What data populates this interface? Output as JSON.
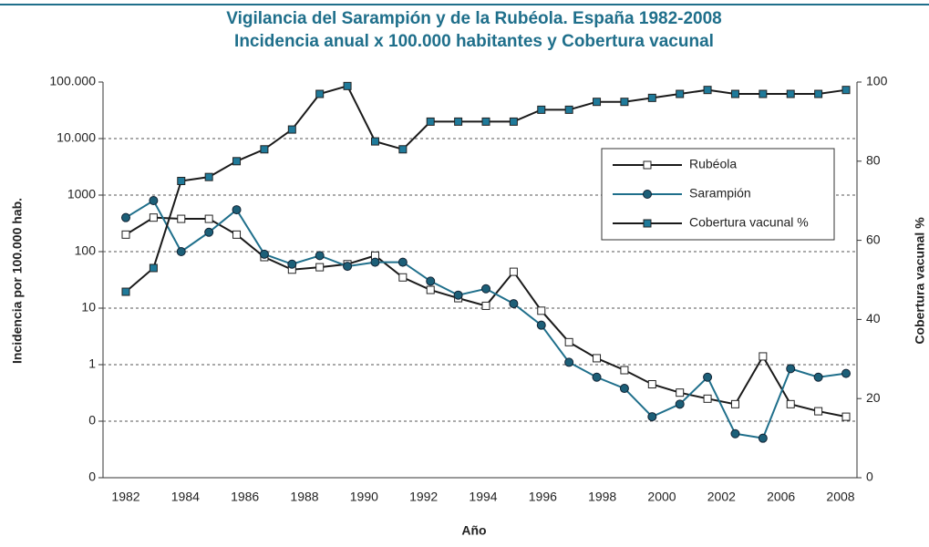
{
  "chart_data": {
    "type": "line",
    "title": [
      "Vigilancia del Sarampión y de la Rubéola. España 1982-2008",
      "Incidencia anual x 100.000 habitantes y Cobertura vacunal"
    ],
    "xlabel": "Año",
    "ylabel": "Incidencia por 100.000 hab.",
    "y2label": "Cobertura vacunal %",
    "xtick_labels": [
      "1982",
      "1984",
      "1986",
      "1988",
      "1990",
      "1992",
      "1994",
      "1996",
      "1998",
      "2000",
      "2002",
      "2006",
      "2008"
    ],
    "log_y": true,
    "ylim": [
      0.01,
      100000
    ],
    "yticks": [
      {
        "value": 0.01,
        "label": "0"
      },
      {
        "value": 0.1,
        "label": "0"
      },
      1,
      10,
      100,
      1000,
      {
        "value": 10000,
        "label": "10.000"
      },
      {
        "value": 100000,
        "label": "100.000"
      }
    ],
    "y2lim": [
      0,
      100
    ],
    "y2ticks": [
      0,
      20,
      40,
      60,
      80,
      100
    ],
    "grid": true,
    "legend": "upper right",
    "series": [
      {
        "name": "Rubéola",
        "color": "#1a1a1a",
        "marker": "square",
        "marker_color": "#ffffff",
        "values": [
          200,
          400,
          380,
          380,
          200,
          80,
          48,
          53,
          60,
          85,
          35,
          21,
          15,
          11,
          44,
          9,
          2.5,
          1.3,
          0.8,
          0.45,
          0.32,
          0.25,
          0.2,
          1.4,
          0.2,
          0.15,
          0.12
        ]
      },
      {
        "name": "Sarampión",
        "color": "#1f6f8b",
        "marker": "circle",
        "marker_color": "#1c5f78",
        "values": [
          400,
          800,
          100,
          220,
          550,
          90,
          60,
          85,
          55,
          65,
          65,
          30,
          17,
          22,
          12,
          5,
          1.1,
          0.6,
          0.38,
          0.12,
          0.2,
          0.6,
          0.06,
          0.05,
          0.85,
          0.6,
          0.7
        ]
      },
      {
        "name": "Cobertura vacunal %",
        "color": "#1a1a1a",
        "marker": "square",
        "marker_color": "#1f7a9a",
        "axis": "y2",
        "values": [
          47,
          53,
          75,
          76,
          80,
          83,
          88,
          97,
          99,
          85,
          83,
          90,
          90,
          90,
          90,
          93,
          93,
          95,
          95,
          96,
          97,
          98,
          97,
          97,
          97,
          97,
          98
        ]
      }
    ]
  }
}
